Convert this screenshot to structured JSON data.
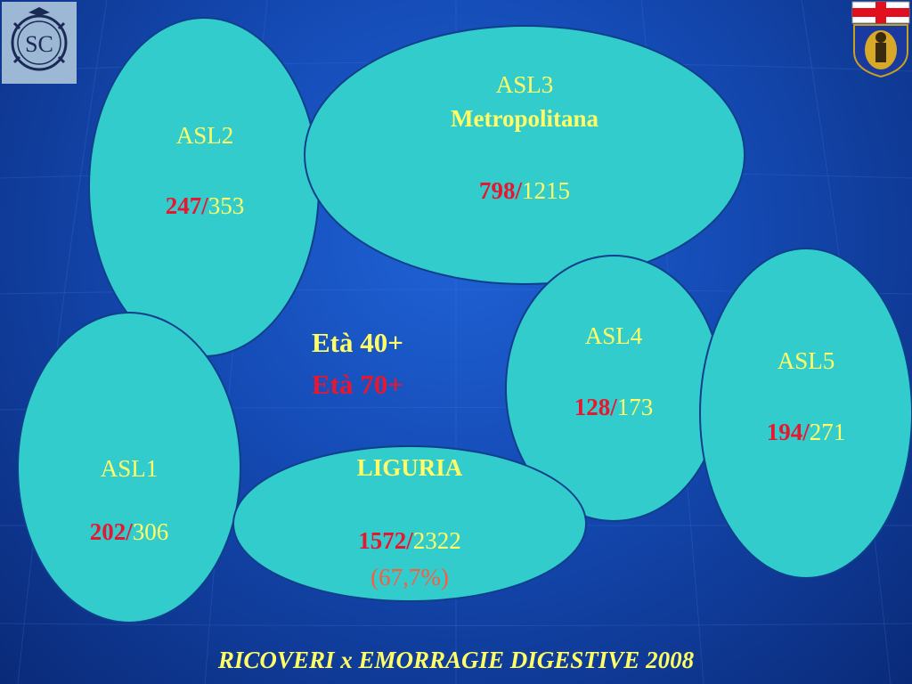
{
  "colors": {
    "ellipse_fill": "#33cccc",
    "label_text": "#ffff66",
    "age70_value": "#e8172f",
    "percent": "#ff5a3c",
    "background": "#1449b2"
  },
  "logos": {
    "left": "SC",
    "right": "coat-of-arms"
  },
  "legend": {
    "age40": "Età 40+",
    "age70": "Età 70+"
  },
  "regions": {
    "asl2": {
      "name": "ASL2",
      "v70": "247/",
      "v40": "353"
    },
    "asl3": {
      "name1": "ASL3",
      "name2": "Metropolitana",
      "v70": "798/",
      "v40": "1215"
    },
    "asl4": {
      "name": "ASL4",
      "v70": "128/",
      "v40": "173"
    },
    "asl5": {
      "name": "ASL5",
      "v70": "194/",
      "v40": "271"
    },
    "asl1": {
      "name": "ASL1",
      "v70": "202/",
      "v40": "306"
    },
    "liguria": {
      "name": "LIGURIA",
      "v70": "1572/",
      "v40": "2322",
      "percent": "(67,7%)"
    }
  },
  "footer": {
    "title": "RICOVERI x EMORRAGIE DIGESTIVE 2008"
  }
}
